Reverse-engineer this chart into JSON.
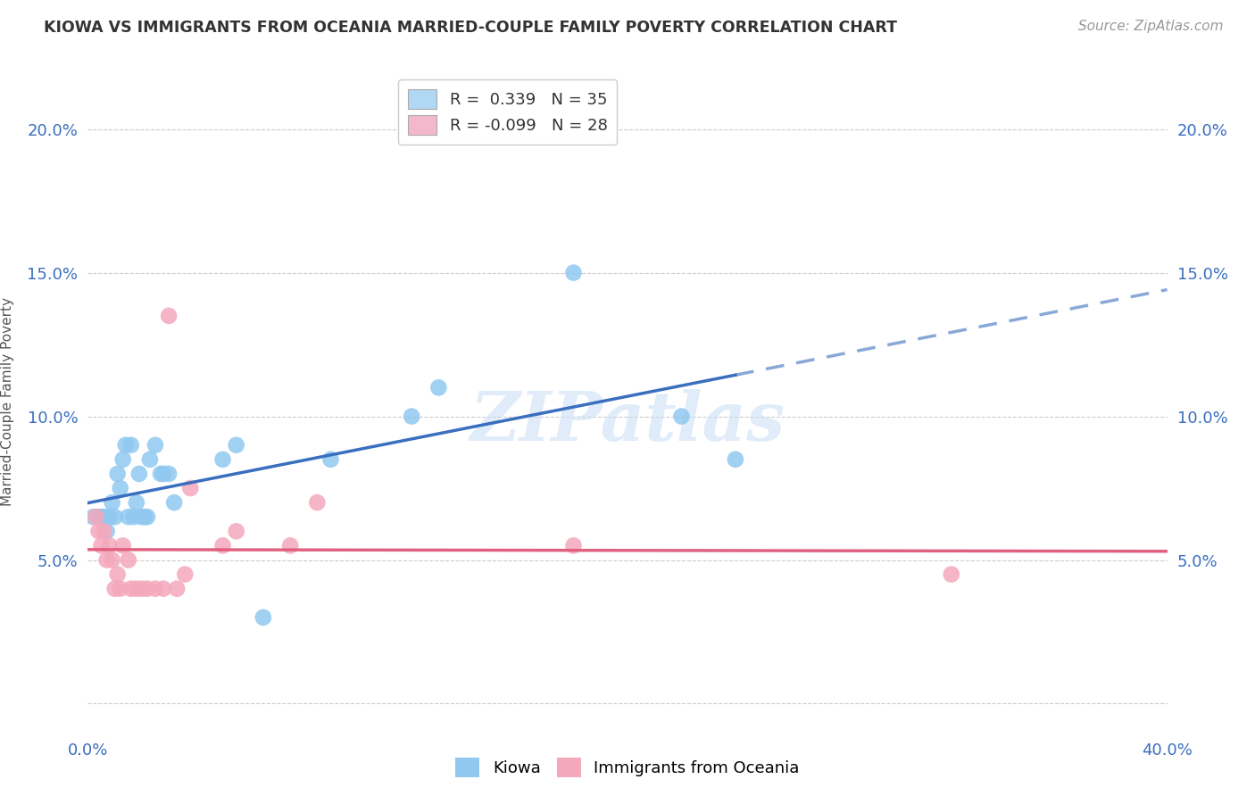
{
  "title": "KIOWA VS IMMIGRANTS FROM OCEANIA MARRIED-COUPLE FAMILY POVERTY CORRELATION CHART",
  "source": "Source: ZipAtlas.com",
  "ylabel": "Married-Couple Family Poverty",
  "xlim": [
    0.0,
    0.4
  ],
  "ylim": [
    -0.01,
    0.22
  ],
  "kiowa_R": 0.339,
  "kiowa_N": 35,
  "oceania_R": -0.099,
  "oceania_N": 28,
  "kiowa_color": "#90C8F0",
  "oceania_color": "#F4A8BC",
  "kiowa_line_color": "#3a6fbf",
  "oceania_line_color": "#e06080",
  "background_color": "#ffffff",
  "grid_color": "#cccccc",
  "kiowa_x": [
    0.002,
    0.004,
    0.005,
    0.006,
    0.007,
    0.008,
    0.009,
    0.01,
    0.011,
    0.012,
    0.013,
    0.014,
    0.015,
    0.016,
    0.017,
    0.018,
    0.019,
    0.02,
    0.021,
    0.022,
    0.023,
    0.025,
    0.027,
    0.028,
    0.03,
    0.032,
    0.05,
    0.055,
    0.065,
    0.09,
    0.12,
    0.13,
    0.18,
    0.22,
    0.24
  ],
  "kiowa_y": [
    0.065,
    0.065,
    0.065,
    0.065,
    0.06,
    0.065,
    0.07,
    0.065,
    0.08,
    0.075,
    0.085,
    0.09,
    0.065,
    0.09,
    0.065,
    0.07,
    0.08,
    0.065,
    0.065,
    0.065,
    0.085,
    0.09,
    0.08,
    0.08,
    0.08,
    0.07,
    0.085,
    0.09,
    0.03,
    0.085,
    0.1,
    0.11,
    0.15,
    0.1,
    0.085
  ],
  "oceania_x": [
    0.003,
    0.004,
    0.005,
    0.006,
    0.007,
    0.008,
    0.009,
    0.01,
    0.011,
    0.012,
    0.013,
    0.015,
    0.016,
    0.018,
    0.02,
    0.022,
    0.025,
    0.028,
    0.03,
    0.033,
    0.036,
    0.038,
    0.05,
    0.055,
    0.075,
    0.085,
    0.18,
    0.32
  ],
  "oceania_y": [
    0.065,
    0.06,
    0.055,
    0.06,
    0.05,
    0.055,
    0.05,
    0.04,
    0.045,
    0.04,
    0.055,
    0.05,
    0.04,
    0.04,
    0.04,
    0.04,
    0.04,
    0.04,
    0.135,
    0.04,
    0.045,
    0.075,
    0.055,
    0.06,
    0.055,
    0.07,
    0.055,
    0.045
  ],
  "watermark": "ZIPatlas",
  "legend_box_color_kiowa": "#b0d8f4",
  "legend_box_color_oceania": "#f4b8cc",
  "solid_kiowa_xlim": [
    0.0,
    0.24
  ],
  "dashed_kiowa_xlim": [
    0.24,
    0.4
  ]
}
